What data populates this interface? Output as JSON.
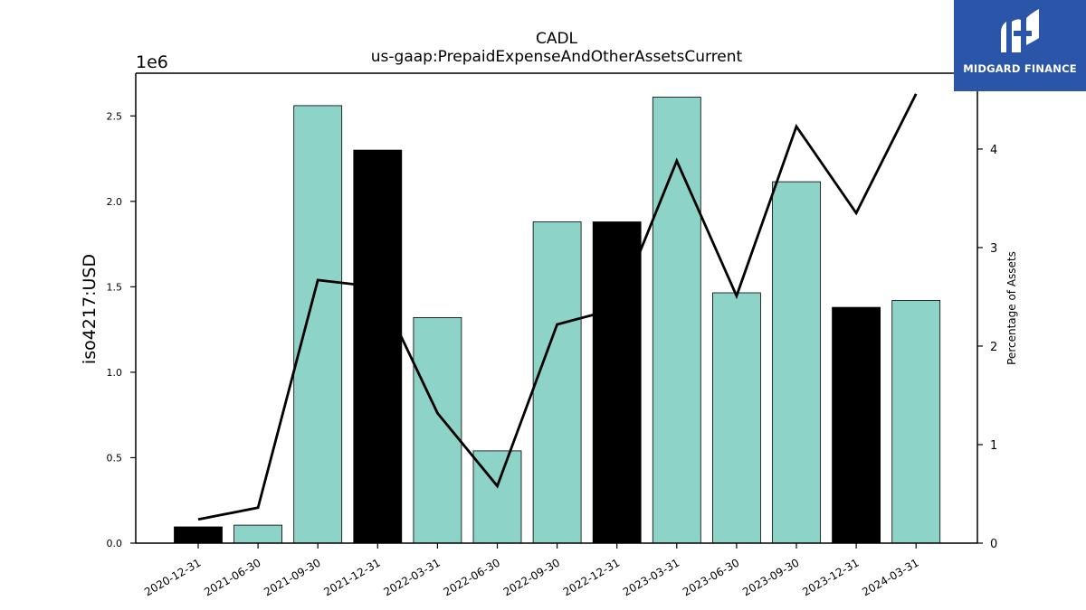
{
  "chart_data": {
    "type": "bar",
    "title": "CADL",
    "subtitle": "us-gaap:PrepaidExpenseAndOtherAssetsCurrent",
    "ylabel": "iso4217:USD",
    "y_offset_label": "1e6",
    "y2label": "Percentage of Assets",
    "categories": [
      "2020-12-31",
      "2021-06-30",
      "2021-09-30",
      "2021-12-31",
      "2022-03-31",
      "2022-06-30",
      "2022-09-30",
      "2022-12-31",
      "2023-03-31",
      "2023-06-30",
      "2023-09-30",
      "2023-12-31",
      "2024-03-31"
    ],
    "values": [
      95000,
      105000,
      2560000,
      2300000,
      1320000,
      540000,
      1880000,
      1880000,
      2610000,
      1465000,
      2115000,
      1380000,
      1420000
    ],
    "bar_colors": [
      "#000000",
      "#8dd3c7",
      "#8dd3c7",
      "#000000",
      "#8dd3c7",
      "#8dd3c7",
      "#8dd3c7",
      "#000000",
      "#8dd3c7",
      "#8dd3c7",
      "#8dd3c7",
      "#000000",
      "#8dd3c7"
    ],
    "line_series": {
      "axis": "right",
      "color": "#000000",
      "values": [
        0.24,
        0.36,
        2.67,
        2.6,
        1.32,
        0.58,
        2.22,
        2.38,
        3.88,
        2.51,
        4.23,
        3.35,
        4.56
      ]
    },
    "ylim": [
      0,
      2750000
    ],
    "y2lim": [
      0,
      4.77
    ],
    "yticks": [
      0,
      500000,
      1000000,
      1500000,
      2000000,
      2500000
    ],
    "ytick_labels": [
      "0.0",
      "0.5",
      "1.0",
      "1.5",
      "2.0",
      "2.5"
    ],
    "y2ticks": [
      0,
      1,
      2,
      3,
      4
    ],
    "y2tick_labels": [
      "0",
      "1",
      "2",
      "3",
      "4"
    ],
    "grid": false,
    "legend": "none"
  },
  "logo": {
    "text": "MIDGARD FINANCE",
    "background": "#2b55a8"
  }
}
